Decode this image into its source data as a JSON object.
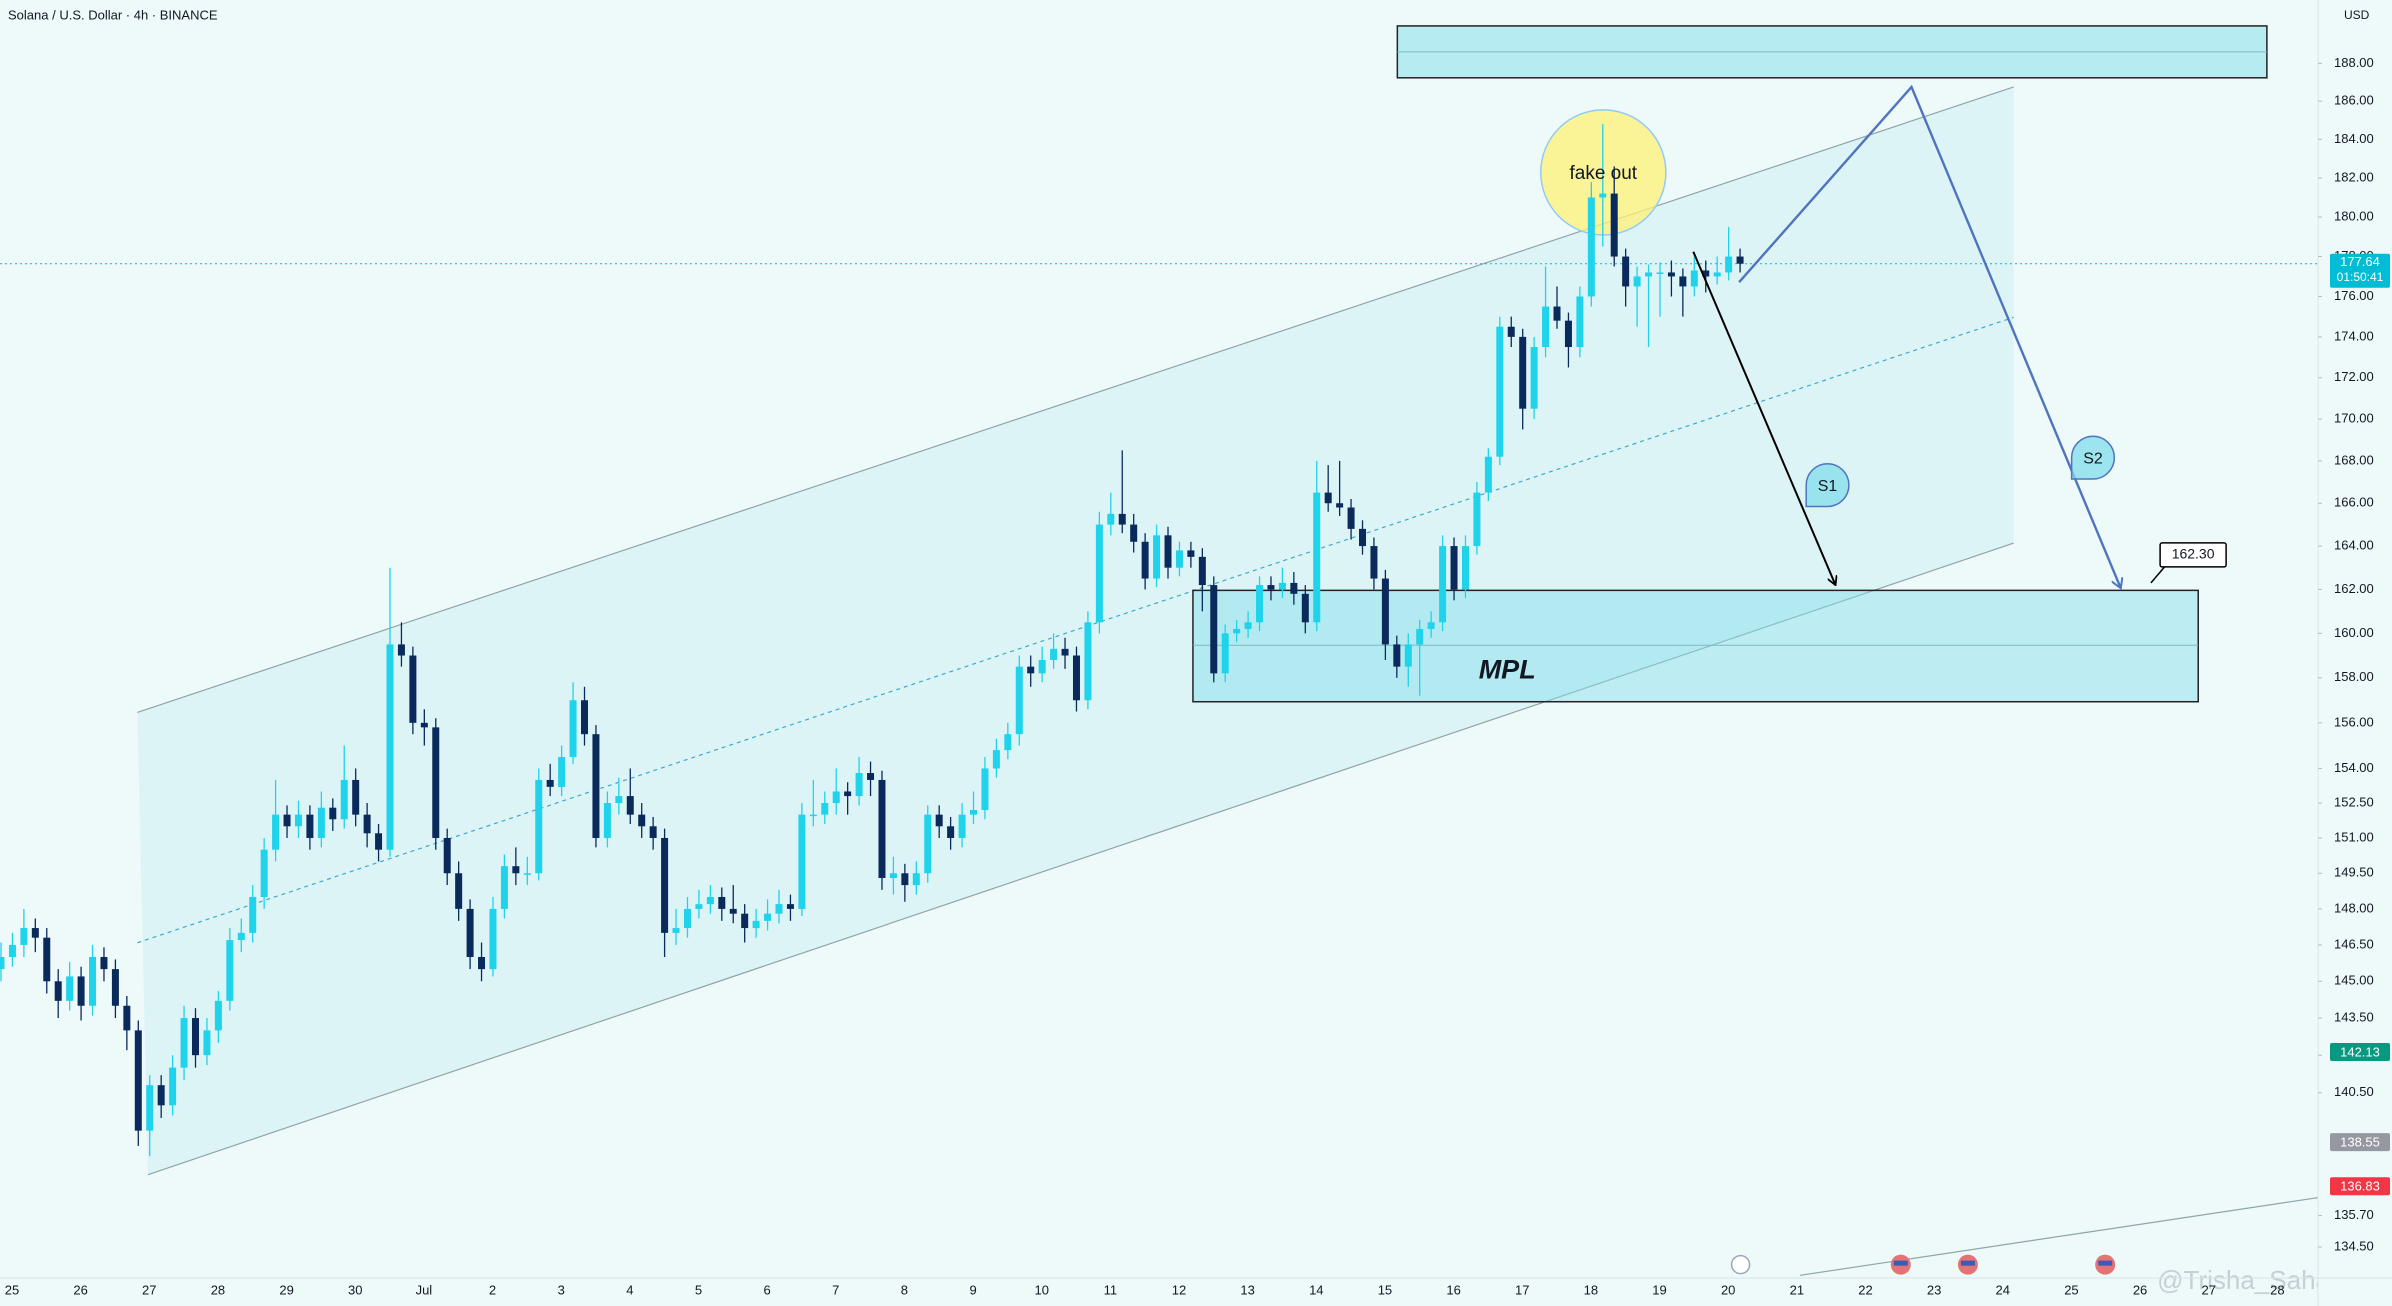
{
  "chart_data": {
    "type": "candlestick",
    "title": "Solana / U.S. Dollar · 4h · BINANCE",
    "currency": "USD",
    "x_labels": [
      "25",
      "26",
      "27",
      "28",
      "29",
      "30",
      "Jul",
      "2",
      "3",
      "4",
      "5",
      "6",
      "7",
      "8",
      "9",
      "10",
      "11",
      "12",
      "13",
      "14",
      "15",
      "16",
      "17",
      "18",
      "19",
      "20",
      "21",
      "22",
      "23",
      "24",
      "25",
      "26",
      "27",
      "28"
    ],
    "log_scale": true,
    "ylim": [
      133.4,
      191.4
    ],
    "yticks": [
      {
        "value": 188,
        "label": "188.00"
      },
      {
        "value": 186,
        "label": "186.00"
      },
      {
        "value": 184,
        "label": "184.00"
      },
      {
        "value": 182,
        "label": "182.00"
      },
      {
        "value": 180,
        "label": "180.00"
      },
      {
        "value": 178,
        "label": "178.00"
      },
      {
        "value": 176,
        "label": "176.00"
      },
      {
        "value": 174,
        "label": "174.00"
      },
      {
        "value": 172,
        "label": "172.00"
      },
      {
        "value": 170,
        "label": "170.00"
      },
      {
        "value": 168,
        "label": "168.00"
      },
      {
        "value": 166,
        "label": "166.00"
      },
      {
        "value": 164,
        "label": "164.00"
      },
      {
        "value": 162,
        "label": "162.00"
      },
      {
        "value": 160,
        "label": "160.00"
      },
      {
        "value": 158,
        "label": "158.00"
      },
      {
        "value": 156,
        "label": "156.00"
      },
      {
        "value": 154,
        "label": "154.00"
      },
      {
        "value": 152.5,
        "label": "152.50"
      },
      {
        "value": 151,
        "label": "151.00"
      },
      {
        "value": 149.5,
        "label": "149.50"
      },
      {
        "value": 148,
        "label": "148.00"
      },
      {
        "value": 146.5,
        "label": "146.50"
      },
      {
        "value": 145,
        "label": "145.00"
      },
      {
        "value": 143.5,
        "label": "143.50"
      },
      {
        "value": 142,
        "label": "142.00"
      },
      {
        "value": 140.5,
        "label": "140.50"
      },
      {
        "value": 135.7,
        "label": "135.70"
      },
      {
        "value": 134.5,
        "label": "134.50"
      }
    ],
    "colors": {
      "up": "#1fd3ea",
      "down": "#0a2a5c"
    },
    "ohlc": [
      [
        145.5,
        146.6,
        145.0,
        146.0
      ],
      [
        146.0,
        147.0,
        145.6,
        146.5
      ],
      [
        146.5,
        148.0,
        146.0,
        147.2
      ],
      [
        147.2,
        147.6,
        146.2,
        146.8
      ],
      [
        146.8,
        147.2,
        144.5,
        145.0
      ],
      [
        145.0,
        145.5,
        143.5,
        144.2
      ],
      [
        144.2,
        145.8,
        143.8,
        145.2
      ],
      [
        145.2,
        145.6,
        143.4,
        144.0
      ],
      [
        144.0,
        146.5,
        143.6,
        146.0
      ],
      [
        146.0,
        146.4,
        145.0,
        145.5
      ],
      [
        145.5,
        145.9,
        143.5,
        144.0
      ],
      [
        144.0,
        144.4,
        142.2,
        143.0
      ],
      [
        143.0,
        143.4,
        138.4,
        139.0
      ],
      [
        139.0,
        141.2,
        138.0,
        140.8
      ],
      [
        140.8,
        141.2,
        139.5,
        140.0
      ],
      [
        140.0,
        142.0,
        139.6,
        141.5
      ],
      [
        141.5,
        144.0,
        141.0,
        143.5
      ],
      [
        143.5,
        143.9,
        141.5,
        142.0
      ],
      [
        142.0,
        143.5,
        141.6,
        143.0
      ],
      [
        143.0,
        144.6,
        142.5,
        144.2
      ],
      [
        144.2,
        147.2,
        143.8,
        146.7
      ],
      [
        146.7,
        147.6,
        146.2,
        147.0
      ],
      [
        147.0,
        149.0,
        146.6,
        148.5
      ],
      [
        148.5,
        151.0,
        148.0,
        150.5
      ],
      [
        150.5,
        153.5,
        150.0,
        152.0
      ],
      [
        152.0,
        152.4,
        151.0,
        151.5
      ],
      [
        151.5,
        152.6,
        151.0,
        152.0
      ],
      [
        152.0,
        152.4,
        150.5,
        151.0
      ],
      [
        151.0,
        153.0,
        150.6,
        152.3
      ],
      [
        152.3,
        152.7,
        151.3,
        151.8
      ],
      [
        151.8,
        155.0,
        151.4,
        153.5
      ],
      [
        153.5,
        154.0,
        151.5,
        152.0
      ],
      [
        152.0,
        152.5,
        150.6,
        151.2
      ],
      [
        151.2,
        151.6,
        150.0,
        150.5
      ],
      [
        150.5,
        163.0,
        150.2,
        159.5
      ],
      [
        159.5,
        160.5,
        158.5,
        159.0
      ],
      [
        159.0,
        159.4,
        155.5,
        156.0
      ],
      [
        156.0,
        156.6,
        155.0,
        155.8
      ],
      [
        155.8,
        156.2,
        150.5,
        151.0
      ],
      [
        151.0,
        151.4,
        149.0,
        149.5
      ],
      [
        149.5,
        150.0,
        147.5,
        148.0
      ],
      [
        148.0,
        148.4,
        145.5,
        146.0
      ],
      [
        146.0,
        146.6,
        145.0,
        145.5
      ],
      [
        145.5,
        148.5,
        145.2,
        148.0
      ],
      [
        148.0,
        150.3,
        147.6,
        149.8
      ],
      [
        149.8,
        150.6,
        149.0,
        149.5
      ],
      [
        149.5,
        150.2,
        149.0,
        149.5
      ],
      [
        149.5,
        154.0,
        149.2,
        153.5
      ],
      [
        153.5,
        154.2,
        152.8,
        153.2
      ],
      [
        153.2,
        155.0,
        152.8,
        154.5
      ],
      [
        154.5,
        157.8,
        154.2,
        157.0
      ],
      [
        157.0,
        157.6,
        155.0,
        155.5
      ],
      [
        155.5,
        155.9,
        150.6,
        151.0
      ],
      [
        151.0,
        153.0,
        150.6,
        152.5
      ],
      [
        152.5,
        153.6,
        152.0,
        152.8
      ],
      [
        152.8,
        154.0,
        151.6,
        152.0
      ],
      [
        152.0,
        152.5,
        151.0,
        151.5
      ],
      [
        151.5,
        151.9,
        150.5,
        151.0
      ],
      [
        151.0,
        151.4,
        146.0,
        147.0
      ],
      [
        147.0,
        148.0,
        146.5,
        147.2
      ],
      [
        147.2,
        148.5,
        146.8,
        148.0
      ],
      [
        148.0,
        148.8,
        147.6,
        148.2
      ],
      [
        148.2,
        149.0,
        147.8,
        148.5
      ],
      [
        148.5,
        148.9,
        147.5,
        148.0
      ],
      [
        148.0,
        149.0,
        147.4,
        147.8
      ],
      [
        147.8,
        148.2,
        146.6,
        147.2
      ],
      [
        147.2,
        148.0,
        146.8,
        147.5
      ],
      [
        147.5,
        148.4,
        147.1,
        147.8
      ],
      [
        147.8,
        148.8,
        147.4,
        148.2
      ],
      [
        148.2,
        148.6,
        147.5,
        148.0
      ],
      [
        148.0,
        152.5,
        147.7,
        152.0
      ],
      [
        152.0,
        153.5,
        151.5,
        152.0
      ],
      [
        152.0,
        153.0,
        151.6,
        152.5
      ],
      [
        152.5,
        154.0,
        152.0,
        153.0
      ],
      [
        153.0,
        153.4,
        152.0,
        152.8
      ],
      [
        152.8,
        154.5,
        152.4,
        153.8
      ],
      [
        153.8,
        154.3,
        152.8,
        153.5
      ],
      [
        153.5,
        153.9,
        148.8,
        149.3
      ],
      [
        149.3,
        150.2,
        148.6,
        149.5
      ],
      [
        149.5,
        149.9,
        148.3,
        149.0
      ],
      [
        149.0,
        150.0,
        148.6,
        149.5
      ],
      [
        149.5,
        152.4,
        149.1,
        152.0
      ],
      [
        152.0,
        152.4,
        151.0,
        151.5
      ],
      [
        151.5,
        151.9,
        150.5,
        151.0
      ],
      [
        151.0,
        152.5,
        150.6,
        152.0
      ],
      [
        152.0,
        153.0,
        151.6,
        152.2
      ],
      [
        152.2,
        154.5,
        151.8,
        154.0
      ],
      [
        154.0,
        155.3,
        153.6,
        154.8
      ],
      [
        154.8,
        156.0,
        154.4,
        155.5
      ],
      [
        155.5,
        159.0,
        155.0,
        158.5
      ],
      [
        158.5,
        159.0,
        157.6,
        158.2
      ],
      [
        158.2,
        159.4,
        157.8,
        158.8
      ],
      [
        158.8,
        160.0,
        158.4,
        159.3
      ],
      [
        159.3,
        159.8,
        158.4,
        159.0
      ],
      [
        159.0,
        159.4,
        156.5,
        157.0
      ],
      [
        157.0,
        161.0,
        156.6,
        160.5
      ],
      [
        160.5,
        165.6,
        160.0,
        165.0
      ],
      [
        165.0,
        166.5,
        164.5,
        165.5
      ],
      [
        165.5,
        168.5,
        164.6,
        165.0
      ],
      [
        165.0,
        165.5,
        163.7,
        164.2
      ],
      [
        164.2,
        164.6,
        162.0,
        162.5
      ],
      [
        162.5,
        165.0,
        162.1,
        164.5
      ],
      [
        164.5,
        164.9,
        162.5,
        163.0
      ],
      [
        163.0,
        164.2,
        162.6,
        163.8
      ],
      [
        163.8,
        164.2,
        163.0,
        163.5
      ],
      [
        163.5,
        163.9,
        161.0,
        162.2
      ],
      [
        162.2,
        162.6,
        157.8,
        158.2
      ],
      [
        158.2,
        160.4,
        157.8,
        160.0
      ],
      [
        160.0,
        160.6,
        159.6,
        160.2
      ],
      [
        160.2,
        161.0,
        159.8,
        160.5
      ],
      [
        160.5,
        162.6,
        160.1,
        162.2
      ],
      [
        162.2,
        162.6,
        161.5,
        162.0
      ],
      [
        162.0,
        163.0,
        161.6,
        162.3
      ],
      [
        162.3,
        162.8,
        161.3,
        161.8
      ],
      [
        161.8,
        162.2,
        160.0,
        160.5
      ],
      [
        160.5,
        168.0,
        160.1,
        166.5
      ],
      [
        166.5,
        167.8,
        165.6,
        166.0
      ],
      [
        166.0,
        168.0,
        165.4,
        165.8
      ],
      [
        165.8,
        166.2,
        164.3,
        164.8
      ],
      [
        164.8,
        165.2,
        163.6,
        164.0
      ],
      [
        164.0,
        164.4,
        162.0,
        162.5
      ],
      [
        162.5,
        162.9,
        158.8,
        159.5
      ],
      [
        159.5,
        159.9,
        158.0,
        158.5
      ],
      [
        158.5,
        160.0,
        157.6,
        159.5
      ],
      [
        159.5,
        160.6,
        157.2,
        160.2
      ],
      [
        160.2,
        161.0,
        159.8,
        160.5
      ],
      [
        160.5,
        164.5,
        160.1,
        164.0
      ],
      [
        164.0,
        164.4,
        161.5,
        162.0
      ],
      [
        162.0,
        164.5,
        161.6,
        164.0
      ],
      [
        164.0,
        167.0,
        163.6,
        166.5
      ],
      [
        166.5,
        168.6,
        166.1,
        168.2
      ],
      [
        168.2,
        175.0,
        167.8,
        174.5
      ],
      [
        174.5,
        175.0,
        173.5,
        174.0
      ],
      [
        174.0,
        174.4,
        169.5,
        170.5
      ],
      [
        170.5,
        174.0,
        170.0,
        173.5
      ],
      [
        173.5,
        177.5,
        173.0,
        175.5
      ],
      [
        175.5,
        176.5,
        174.4,
        174.8
      ],
      [
        174.8,
        175.2,
        172.5,
        173.5
      ],
      [
        173.5,
        176.5,
        173.0,
        176.0
      ],
      [
        176.0,
        181.8,
        175.5,
        181.0
      ],
      [
        181.0,
        184.8,
        178.5,
        181.2
      ],
      [
        181.2,
        182.6,
        177.5,
        178.0
      ],
      [
        178.0,
        178.4,
        175.5,
        176.5
      ],
      [
        176.5,
        177.5,
        174.5,
        177.0
      ],
      [
        177.0,
        177.6,
        173.5,
        177.2
      ],
      [
        177.2,
        177.7,
        175.0,
        177.2
      ],
      [
        177.2,
        177.8,
        176.0,
        177.0
      ],
      [
        177.0,
        177.4,
        175.0,
        176.5
      ],
      [
        176.5,
        178.0,
        176.0,
        177.3
      ],
      [
        177.3,
        177.8,
        176.2,
        177.0
      ],
      [
        177.0,
        178.0,
        176.6,
        177.2
      ],
      [
        177.2,
        179.5,
        176.8,
        178.0
      ],
      [
        178.0,
        178.4,
        177.2,
        177.64
      ]
    ],
    "last_price": {
      "value": 177.64,
      "label": "177.64",
      "countdown": "01:50:41",
      "color": "#00bcd4"
    },
    "price_labels": [
      {
        "value": 142.13,
        "label": "142.13",
        "color": "#089981"
      },
      {
        "value": 138.55,
        "label": "138.55",
        "color": "#9598a1"
      },
      {
        "value": 136.83,
        "label": "136.83",
        "color": "#f23645"
      }
    ],
    "annotations": {
      "fake_out": "fake out",
      "mpl": "MPL",
      "s1": "S1",
      "s2": "S2",
      "target": {
        "value": 162.3,
        "label": "162.30"
      }
    },
    "watermark": "@Trisha_Saha"
  }
}
